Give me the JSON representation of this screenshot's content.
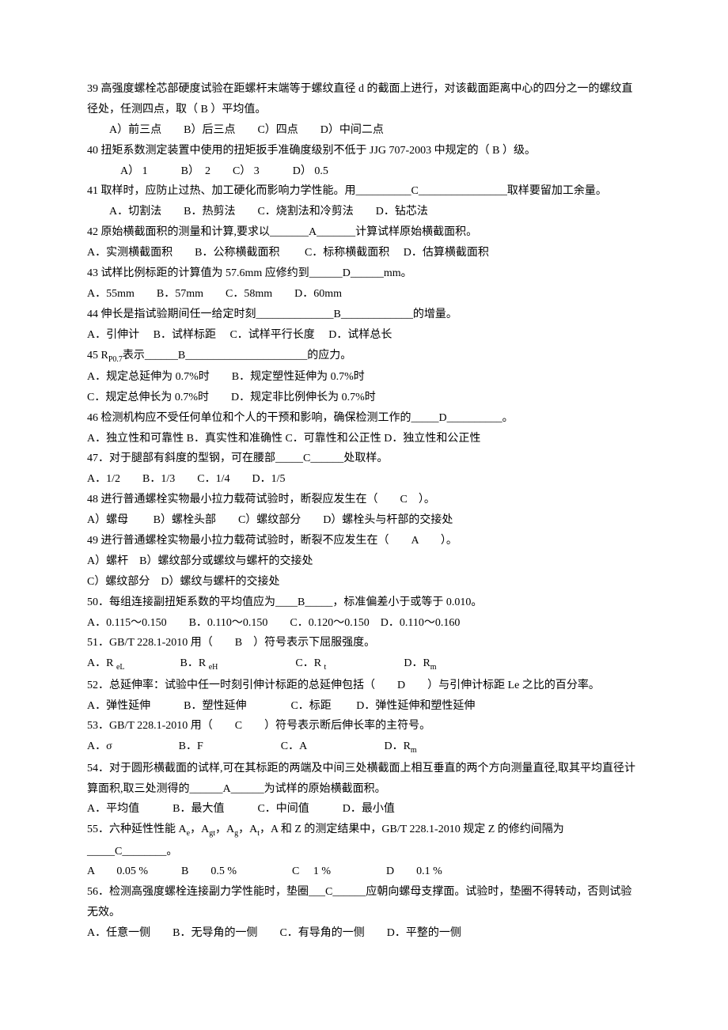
{
  "questions": [
    {
      "num": "39",
      "text": " 高强度螺栓芯部硬度试验在距螺杆末端等于螺纹直径 d 的截面上进行，对该截面距离中心的四分之一的螺纹直径处，任测四点，取（  B  ）平均值。",
      "options": "　A）前三点　　B）后三点　　C）四点　　D）中间二点"
    },
    {
      "num": "40",
      "text": " 扭矩系数测定装置中使用的扭矩扳手准确度级别不低于 JJG 707-2003 中规定的（ B  ）级。",
      "options": "　　A） 1　　　B）　2　　C） 3　　　D） 0.5"
    },
    {
      "num": "41",
      "text": "  原始横截面积的测量和计算,要求以_______A_______计算试样原始横截面积。",
      "options": "A．实测横截面积　　B．公称横截面积　　 C．标称横截面积　 D．估算横截面积",
      "pretext": "41 取样时，应防止过热、加工硬化而影响力学性能。用__________C________________取样要留加工余量。",
      "preoptions": "　A．切割法　　B．热剪法　　C．烧割法和冷剪法　　D．钻芯法"
    },
    {
      "num": "42",
      "text": "  试样比例标距的计算值为 57.6mm 应修约到______D______mm。",
      "options": "A．55mm　　B．57mm　　C．58mm　　D．60mm",
      "actualnum": "43"
    },
    {
      "num": "44",
      "text": " 伸长是指试验期间任一给定时刻______________B_____________的增量。",
      "options": "A．引伸计　 B．试样标距　 C．试样平行长度　 D．试样总长"
    },
    {
      "num": "45",
      "text": " R",
      "subscript": "P0.7",
      "text2": "表示______B______________________的应力。",
      "options": "A．规定总延伸为 0.7%时　　B．规定塑性延伸为 0.7%时\nC．规定总伸长为 0.7%时　　D．规定非比例伸长为 0.7%时"
    },
    {
      "num": "46",
      "text": " 检测机构应不受任何单位和个人的干预和影响，确保检测工作的_____D__________。",
      "options": "A．独立性和可靠性 B．真实性和准确性 C．可靠性和公正性 D．独立性和公正性"
    },
    {
      "num": "47",
      "text": "．对于腿部有斜度的型钢，可在腰部_____C______处取样。",
      "options": "A．1/2　　B．1/3　　C．1/4　　D．1/5"
    },
    {
      "num": "48",
      "text": " 进行普通螺栓实物最小拉力载荷试验时，断裂应发生在（　　C　）。",
      "options": "A）螺母　　 B）螺栓头部　　C）螺纹部分　　D）螺栓头与杆部的交接处"
    },
    {
      "num": "49",
      "text": " 进行普通螺栓实物最小拉力载荷试验时，断裂不应发生在（　　A　　）。",
      "options": "A）螺杆　B）螺纹部分或螺纹与螺杆的交接处\nC）螺纹部分　D）螺纹与螺杆的交接处"
    },
    {
      "num": "50",
      "text": "．每组连接副扭矩系数的平均值应为____B_____，标准偏差小于或等于 0.010。",
      "options": "A．0.115～0.150　　B．0.110～0.150　　C．0.120～0.150　D．0.110～0.160"
    },
    {
      "num": "51",
      "text": "．GB/T 228.1-2010 用（　　B　）符号表示下屈服强度。",
      "options_html": "A．R <span class='sub'>eL</span>　　　　　B．R <span class='sub'>eH</span>　　　　　　　C．R <span class='sub'>t</span>　　　　　　　D．R<span class='sub'>m</span>"
    },
    {
      "num": "52",
      "text": "．总延伸率：试验中任一时刻引伸计标距的总延伸包括（　　D　　）与引伸计标距 Le 之比的百分率。",
      "options": "A．弹性延伸　　　B．塑性延伸　　　　C．标距　　 D．弹性延伸和塑性延伸"
    },
    {
      "num": "53",
      "text": "．GB/T 228.1-2010 用（　　C　　）符号表示断后伸长率的主符号。",
      "options_html": "A．σ　　　　　　B．F　　　　　　　C．A　　　　　　　D．R<span class='sub'>m</span>"
    },
    {
      "num": "54",
      "text": "．对于圆形横截面的试样,可在其标距的两端及中间三处横截面上相互垂直的两个方向测量直径,取其平均直径计算面积,取三处测得的______A______为试样的原始横截面积。",
      "options": "A．平均值　　　B．最大值　　　C．中间值　　　D．最小值"
    },
    {
      "num": "55",
      "text": "．六种延性性能 A",
      "sub1": "e",
      "t1": "，A",
      "sub2": "gt",
      "t2": "，A",
      "sub3": "g",
      "t3": "，A",
      "sub4": "t",
      "t4": "，A 和 Z 的测定结果中，GB/T 228.1-2010 规定 Z 的修约间隔为_____C________。",
      "options": "A　　0.05 %　　　B　　0.5 %　　　　　C　 1 %　　　　　D　　0.1 %"
    },
    {
      "num": "56",
      "text": "．检测高强度螺栓连接副力学性能时，垫圈___C______应朝向螺母支撑面。试验时，垫圈不得转动，否则试验无效。",
      "options": "A．任意一侧　　B．无导角的一侧　　C．有导角的一侧　　D．平整的一侧"
    }
  ]
}
